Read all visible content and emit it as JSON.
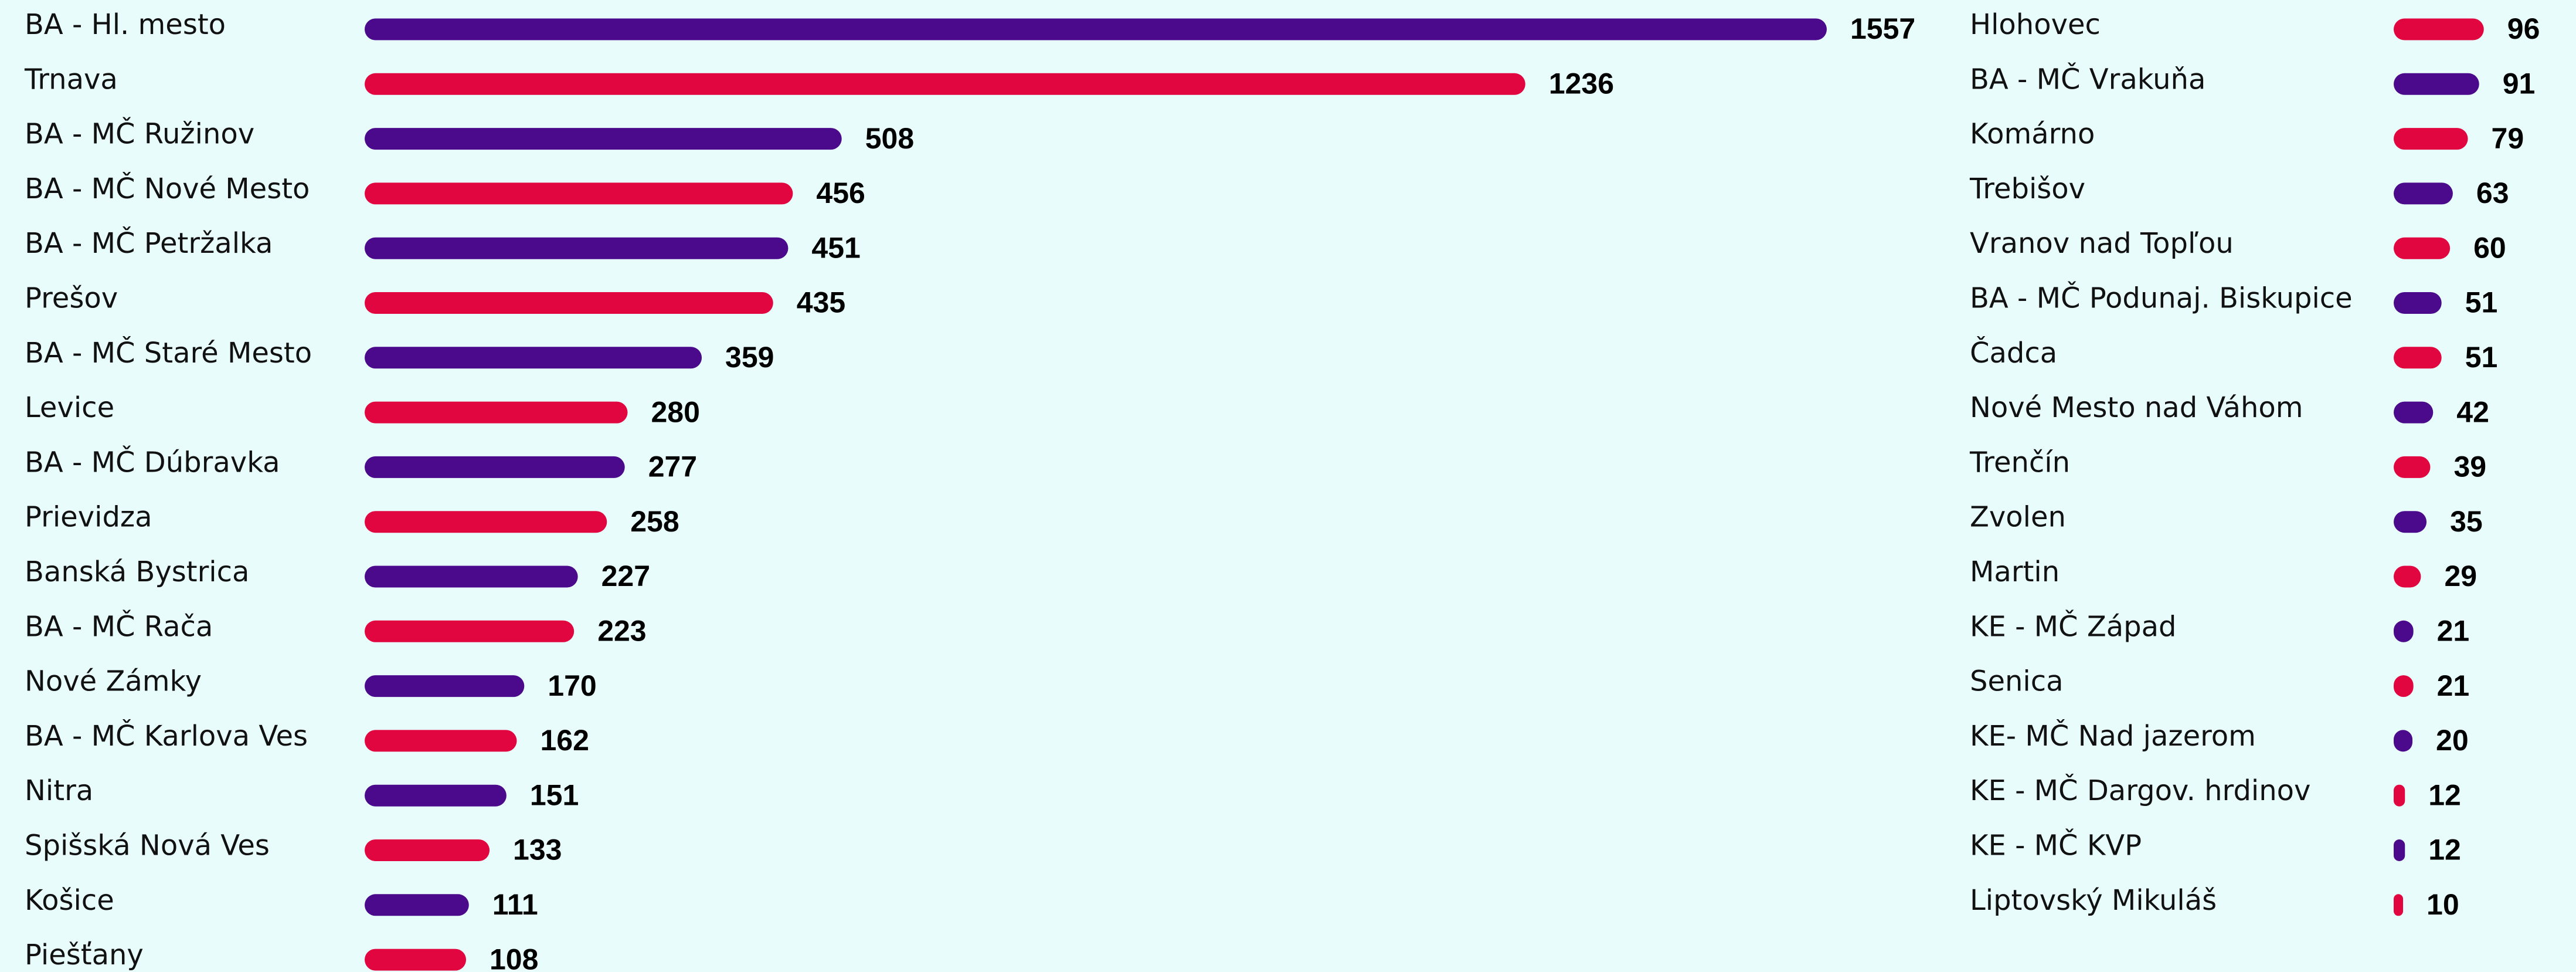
{
  "chart_data": [
    {
      "type": "bar",
      "categories": [
        "BA - Hl. mesto",
        "Trnava",
        "BA - MČ Ružinov",
        "BA - MČ Nové Mesto",
        "BA - MČ Petržalka",
        "Prešov",
        "BA - MČ Staré Mesto",
        "Levice",
        "BA - MČ Dúbravka",
        "Prievidza",
        "Banská Bystrica",
        "BA - MČ Rača",
        "Nové Zámky",
        "BA - MČ Karlova Ves",
        "Nitra",
        "Spišská Nová Ves",
        "Košice",
        "Piešťany"
      ],
      "values": [
        1557,
        1236,
        508,
        456,
        451,
        435,
        359,
        280,
        277,
        258,
        227,
        223,
        170,
        162,
        151,
        133,
        111,
        108
      ],
      "colors": [
        "#4b0a8c",
        "#e1063f",
        "#4b0a8c",
        "#e1063f",
        "#4b0a8c",
        "#e1063f",
        "#4b0a8c",
        "#e1063f",
        "#4b0a8c",
        "#e1063f",
        "#4b0a8c",
        "#e1063f",
        "#4b0a8c",
        "#e1063f",
        "#4b0a8c",
        "#e1063f",
        "#4b0a8c",
        "#e1063f"
      ]
    },
    {
      "type": "bar",
      "categories": [
        "Hlohovec",
        "BA - MČ Vrakuňa",
        "Komárno",
        "Trebišov",
        "Vranov nad Topľou",
        "BA - MČ Podunaj. Biskupice",
        "Čadca",
        "Nové Mesto nad Váhom",
        "Trenčín",
        "Zvolen",
        "Martin",
        "KE - MČ Západ",
        "Senica",
        "KE- MČ Nad jazerom",
        "KE - MČ Dargov. hrdinov",
        "KE - MČ KVP",
        "Liptovský Mikuláš"
      ],
      "values": [
        96,
        91,
        79,
        63,
        60,
        51,
        51,
        42,
        39,
        35,
        29,
        21,
        21,
        20,
        12,
        12,
        10
      ],
      "colors": [
        "#e1063f",
        "#4b0a8c",
        "#e1063f",
        "#4b0a8c",
        "#e1063f",
        "#4b0a8c",
        "#e1063f",
        "#4b0a8c",
        "#e1063f",
        "#4b0a8c",
        "#e1063f",
        "#4b0a8c",
        "#e1063f",
        "#4b0a8c",
        "#e1063f",
        "#4b0a8c",
        "#e1063f"
      ]
    }
  ]
}
